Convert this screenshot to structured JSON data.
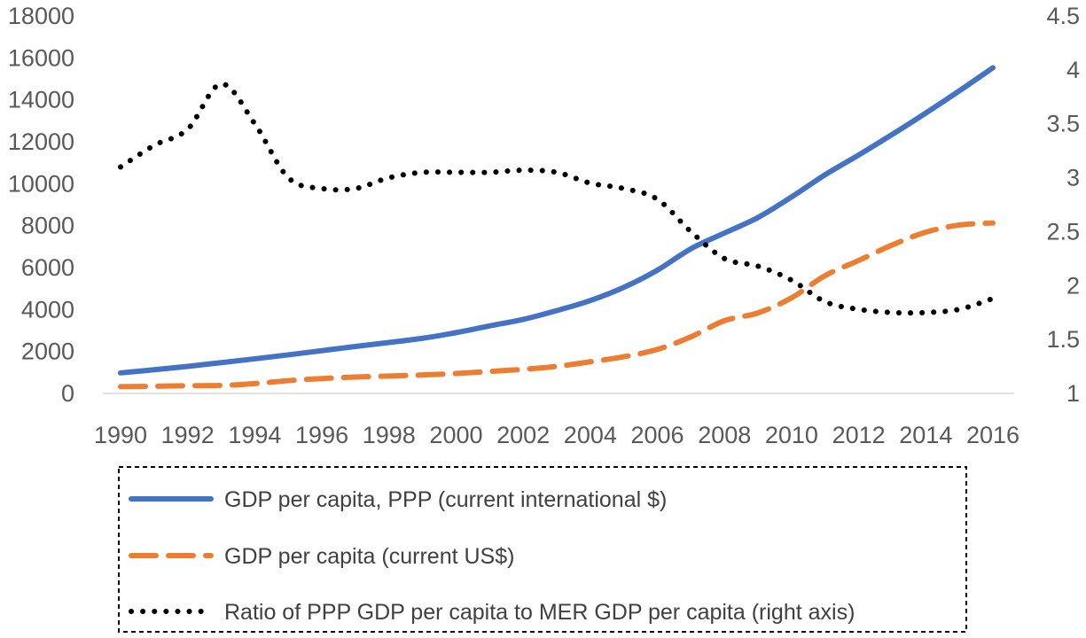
{
  "chart_data": {
    "type": "line",
    "title": "",
    "xlabel": "",
    "ylabel": "",
    "x": [
      1990,
      1991,
      1992,
      1993,
      1994,
      1995,
      1996,
      1997,
      1998,
      1999,
      2000,
      2001,
      2002,
      2003,
      2004,
      2005,
      2006,
      2007,
      2008,
      2009,
      2010,
      2011,
      2012,
      2013,
      2014,
      2015,
      2016
    ],
    "x_ticks": [
      1990,
      1992,
      1994,
      1996,
      1998,
      2000,
      2002,
      2004,
      2006,
      2008,
      2010,
      2012,
      2014,
      2016
    ],
    "y_left": {
      "ylim": [
        0,
        18000
      ],
      "ticks": [
        0,
        2000,
        4000,
        6000,
        8000,
        10000,
        12000,
        14000,
        16000,
        18000
      ]
    },
    "y_right": {
      "ylim": [
        1,
        4.5
      ],
      "ticks": [
        "1",
        "1.5",
        "2",
        "2.5",
        "3",
        "3.5",
        "4",
        "4.5"
      ],
      "tick_values": [
        1,
        1.5,
        2,
        2.5,
        3,
        3.5,
        4,
        4.5
      ]
    },
    "series": [
      {
        "name": "GDP per capita, PPP (current international $)",
        "axis": "left",
        "style": "solid",
        "color": "#4472C4",
        "values": [
          980,
          1130,
          1290,
          1470,
          1650,
          1840,
          2040,
          2240,
          2430,
          2630,
          2900,
          3220,
          3530,
          3950,
          4430,
          5060,
          5880,
          6900,
          7650,
          8390,
          9370,
          10430,
          11370,
          12350,
          13370,
          14430,
          15530
        ]
      },
      {
        "name": "GDP per capita (current US$)",
        "axis": "left",
        "style": "dashed",
        "color": "#ED7D31",
        "values": [
          320,
          340,
          370,
          380,
          470,
          610,
          710,
          780,
          830,
          880,
          950,
          1050,
          1150,
          1290,
          1510,
          1750,
          2100,
          2700,
          3470,
          3840,
          4560,
          5620,
          6340,
          7080,
          7690,
          8030,
          8130
        ]
      },
      {
        "name": "Ratio of PPP GDP per capita to MER GDP per capita (right axis)",
        "axis": "right",
        "style": "dotted",
        "color": "#000000",
        "values": [
          3.1,
          3.3,
          3.45,
          3.87,
          3.5,
          3.0,
          2.9,
          2.9,
          3.0,
          3.05,
          3.05,
          3.05,
          3.07,
          3.05,
          2.95,
          2.9,
          2.8,
          2.5,
          2.25,
          2.18,
          2.05,
          1.85,
          1.78,
          1.75,
          1.75,
          1.78,
          1.88
        ]
      }
    ],
    "legend": {
      "position": "bottom",
      "items": [
        "GDP per capita, PPP (current international $)",
        "GDP per capita (current US$)",
        "Ratio of PPP GDP per capita to MER GDP per capita (right axis)"
      ]
    },
    "grid": false
  }
}
